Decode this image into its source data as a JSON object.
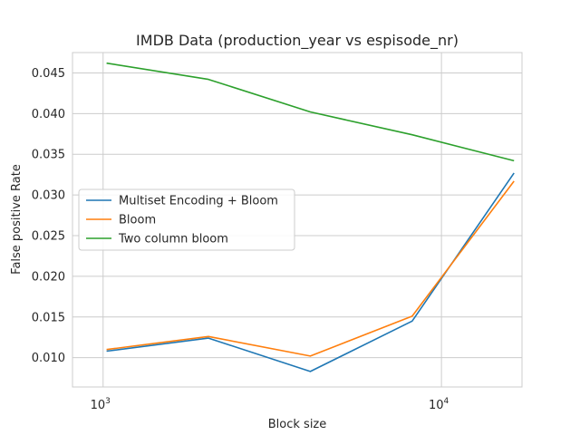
{
  "chart_data": {
    "type": "line",
    "title": "IMDB Data (production_year vs espisode_nr)",
    "xlabel": "Block size",
    "ylabel": "False positive Rate",
    "xscale": "log",
    "xlim": [
      812,
      17300
    ],
    "ylim": [
      0.0064,
      0.0475
    ],
    "x": [
      1024,
      2048,
      4096,
      8192,
      16384
    ],
    "xticks": [
      {
        "value": 1000,
        "base": "10",
        "exp": "3"
      },
      {
        "value": 10000,
        "base": "10",
        "exp": "4"
      }
    ],
    "yticks": [
      0.01,
      0.015,
      0.02,
      0.025,
      0.03,
      0.035,
      0.04,
      0.045
    ],
    "ytick_labels": [
      "0.010",
      "0.015",
      "0.020",
      "0.025",
      "0.030",
      "0.035",
      "0.040",
      "0.045"
    ],
    "grid": true,
    "legend_position": "center-left",
    "series": [
      {
        "name": "Multiset Encoding + Bloom",
        "color": "#1f77b4",
        "values": [
          0.0108,
          0.0124,
          0.0083,
          0.0145,
          0.0327
        ]
      },
      {
        "name": "Bloom",
        "color": "#ff7f0e",
        "values": [
          0.011,
          0.0126,
          0.0102,
          0.0151,
          0.0317
        ]
      },
      {
        "name": "Two column bloom",
        "color": "#2ca02c",
        "values": [
          0.0462,
          0.0442,
          0.0402,
          0.0374,
          0.0342
        ]
      }
    ]
  }
}
